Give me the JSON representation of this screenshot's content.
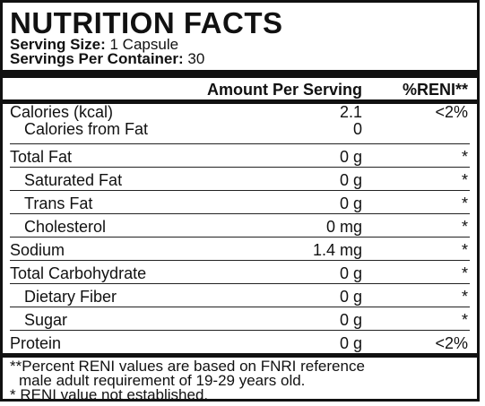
{
  "label": {
    "title": "NUTRITION FACTS",
    "serving_size_label": "Serving Size:",
    "serving_size_value": "1 Capsule",
    "servings_label": "Servings Per Container:",
    "servings_value": "30",
    "header": {
      "amount": "Amount Per Serving",
      "reni": "%RENI**"
    },
    "rows": [
      {
        "name": "Calories (kcal)",
        "amount": "2.1",
        "reni": "<2%"
      },
      {
        "name": "Calories from Fat",
        "amount": "0",
        "reni": ""
      },
      {
        "name": "Total Fat",
        "amount": "0 g",
        "reni": "*"
      },
      {
        "name": "Saturated Fat",
        "amount": "0 g",
        "reni": "*"
      },
      {
        "name": "Trans Fat",
        "amount": "0 g",
        "reni": "*"
      },
      {
        "name": "Cholesterol",
        "amount": "0 mg",
        "reni": "*"
      },
      {
        "name": "Sodium",
        "amount": "1.4 mg",
        "reni": "*"
      },
      {
        "name": "Total Carbohydrate",
        "amount": "0 g",
        "reni": "*"
      },
      {
        "name": "Dietary Fiber",
        "amount": "0 g",
        "reni": "*"
      },
      {
        "name": "Sugar",
        "amount": "0 g",
        "reni": "*"
      },
      {
        "name": "Protein",
        "amount": "0 g",
        "reni": "<2%"
      }
    ],
    "footnote_1a": "**Percent RENI values are based on FNRI reference",
    "footnote_1b": "male adult requirement of 19-29 years old.",
    "footnote_2": "* RENI value not established."
  }
}
